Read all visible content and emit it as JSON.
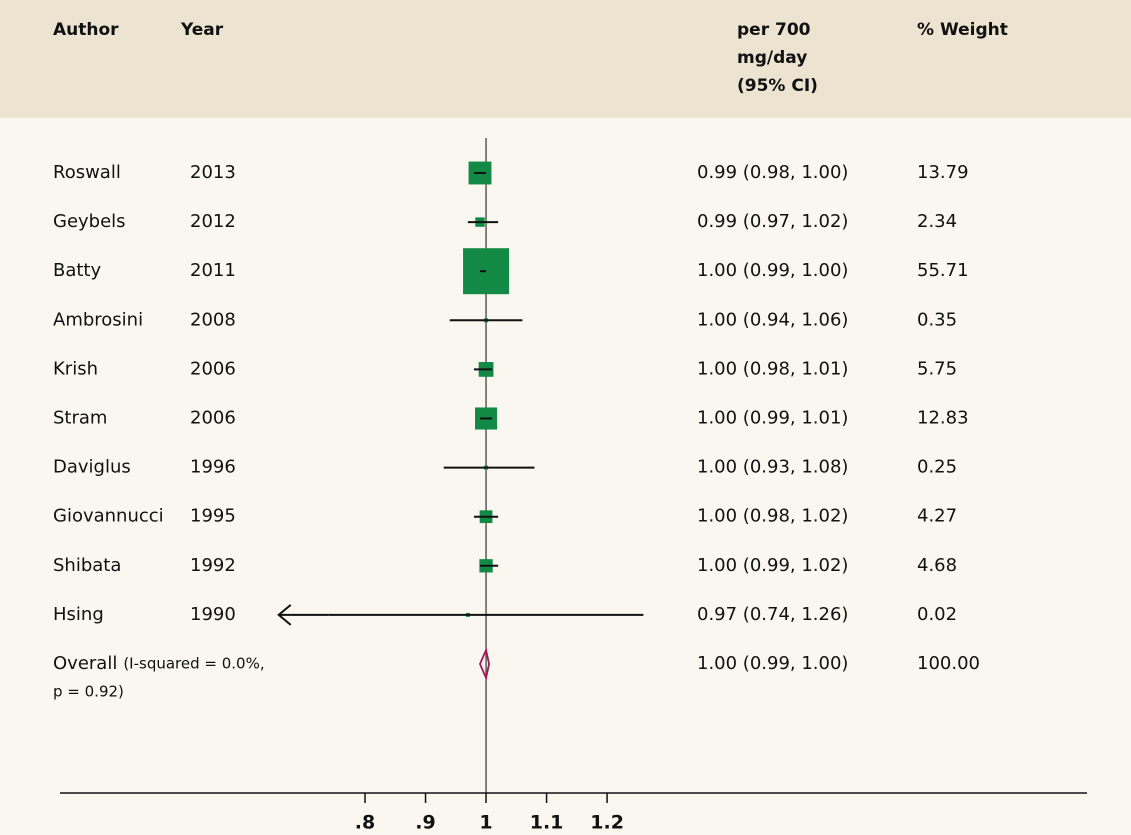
{
  "chart_data": {
    "type": "forest",
    "headers": {
      "author": "Author",
      "year": "Year",
      "ci": [
        "per 700",
        "mg/day",
        "(95% CI)"
      ],
      "weight": "% Weight"
    },
    "studies": [
      {
        "author": "Roswall",
        "year": "2013",
        "estimate": 0.99,
        "lower": 0.98,
        "upper": 1.0,
        "ci_label": "0.99 (0.98, 1.00)",
        "weight": 13.79
      },
      {
        "author": "Geybels",
        "year": "2012",
        "estimate": 0.99,
        "lower": 0.97,
        "upper": 1.02,
        "ci_label": "0.99 (0.97, 1.02)",
        "weight": 2.34
      },
      {
        "author": "Batty",
        "year": "2011",
        "estimate": 1.0,
        "lower": 0.99,
        "upper": 1.0,
        "ci_label": "1.00 (0.99, 1.00)",
        "weight": 55.71
      },
      {
        "author": "Ambrosini",
        "year": "2008",
        "estimate": 1.0,
        "lower": 0.94,
        "upper": 1.06,
        "ci_label": "1.00 (0.94, 1.06)",
        "weight": 0.35
      },
      {
        "author": "Krish",
        "year": "2006",
        "estimate": 1.0,
        "lower": 0.98,
        "upper": 1.01,
        "ci_label": "1.00 (0.98, 1.01)",
        "weight": 5.75
      },
      {
        "author": "Stram",
        "year": "2006",
        "estimate": 1.0,
        "lower": 0.99,
        "upper": 1.01,
        "ci_label": "1.00 (0.99, 1.01)",
        "weight": 12.83
      },
      {
        "author": "Daviglus",
        "year": "1996",
        "estimate": 1.0,
        "lower": 0.93,
        "upper": 1.08,
        "ci_label": "1.00 (0.93, 1.08)",
        "weight": 0.25
      },
      {
        "author": "Giovannucci",
        "year": "1995",
        "estimate": 1.0,
        "lower": 0.98,
        "upper": 1.02,
        "ci_label": "1.00 (0.98, 1.02)",
        "weight": 4.27
      },
      {
        "author": "Shibata",
        "year": "1992",
        "estimate": 1.0,
        "lower": 0.99,
        "upper": 1.02,
        "ci_label": "1.00 (0.99, 1.02)",
        "weight": 4.68
      },
      {
        "author": "Hsing",
        "year": "1990",
        "estimate": 0.97,
        "lower": 0.74,
        "upper": 1.26,
        "ci_label": "0.97 (0.74, 1.26)",
        "weight": 0.02,
        "arrow": "left"
      }
    ],
    "overall": {
      "label": "Overall",
      "note": [
        "(I-squared = 0.0%,",
        "p = 0.92)"
      ],
      "estimate": 1.0,
      "lower": 0.99,
      "upper": 1.0,
      "ci_label": "1.00 (0.99, 1.00)",
      "weight": 100,
      "weight_label": "100.00"
    },
    "xlim": [
      0.296,
      1.993
    ],
    "xticks": [
      {
        "value": 0.8,
        "label": ".8"
      },
      {
        "value": 0.9,
        "label": ".9"
      },
      1,
      1.1,
      1.2
    ],
    "reference": 1,
    "box_color": "#128a45",
    "diamond_color": "#a0175a"
  }
}
